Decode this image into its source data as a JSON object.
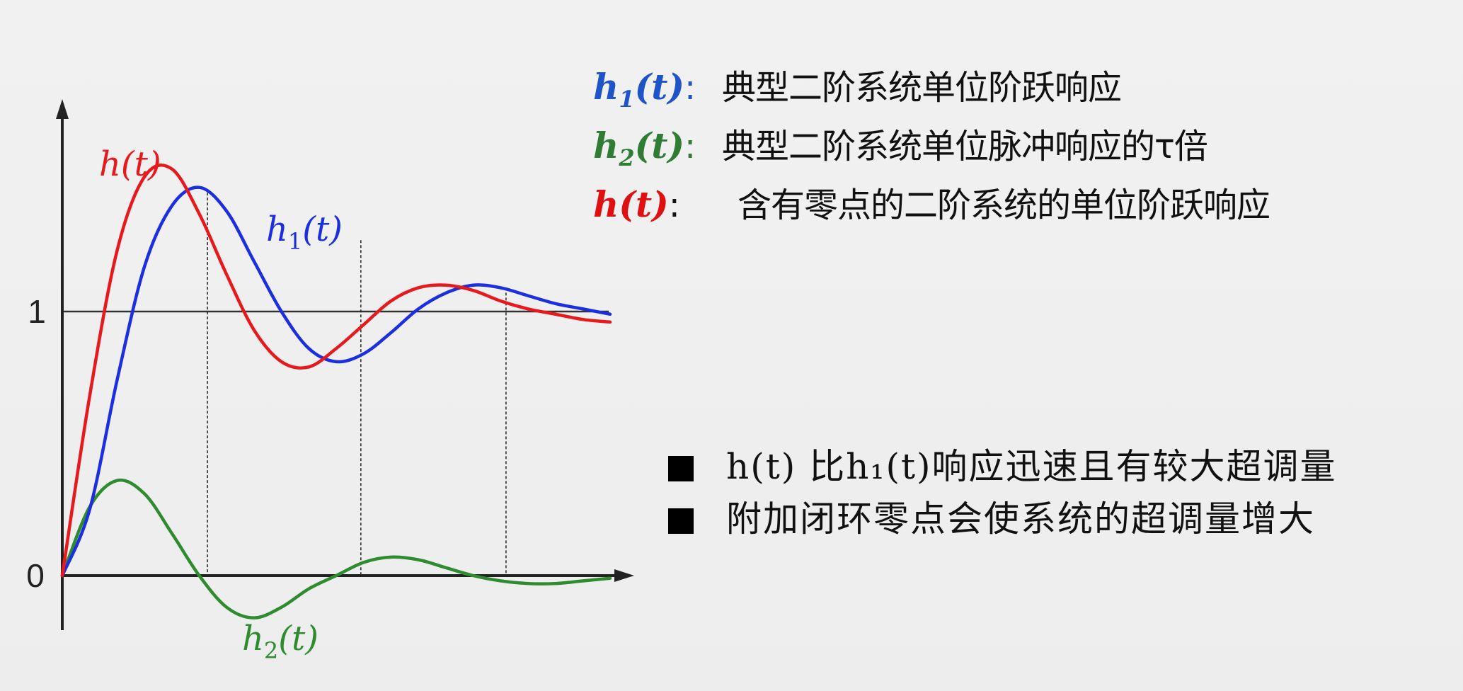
{
  "legend": [
    {
      "sym": "h",
      "sub": "1",
      "arg": "(t)",
      "sep": ":",
      "desc": "典型二阶系统单位阶跃响应",
      "color": "#1f54c8"
    },
    {
      "sym": "h",
      "sub": "2",
      "arg": "(t)",
      "sep": ":",
      "desc": "典型二阶系统单位脉冲响应的τ倍",
      "color": "#2e7d32"
    },
    {
      "sym": "h",
      "sub": "",
      "arg": "(t)",
      "sep": ":",
      "desc": "含有零点的二阶系统的单位阶跃响应",
      "color": "#e01010"
    }
  ],
  "notes": [
    {
      "text": "h(t) 比h₁(t)响应迅速且有较大超调量"
    },
    {
      "text": "附加闭环零点会使系统的超调量增大"
    }
  ],
  "chart_data": {
    "type": "line",
    "yticks": [
      "0",
      "1"
    ],
    "ylim": [
      -0.2,
      1.85
    ],
    "xlim": [
      0,
      10
    ],
    "reference_line": 1,
    "series": [
      {
        "name": "h(t)",
        "sub": "",
        "color": "#e8191c",
        "x": [
          0,
          0.5,
          1.0,
          1.5,
          2.0,
          2.5,
          3.0,
          3.5,
          4.0,
          4.5,
          5.0,
          5.5,
          6.0,
          6.5,
          7.0,
          7.5,
          8.0,
          8.5,
          9.0,
          9.5,
          10
        ],
        "y": [
          0,
          0.68,
          1.23,
          1.51,
          1.54,
          1.37,
          1.14,
          0.93,
          0.81,
          0.79,
          0.86,
          0.95,
          1.04,
          1.09,
          1.1,
          1.08,
          1.04,
          1.01,
          0.99,
          0.97,
          0.96
        ]
      },
      {
        "name": "h₁(t)",
        "sub": "1",
        "color": "#1c2fe0",
        "x": [
          0,
          0.5,
          1.0,
          1.5,
          2.0,
          2.5,
          3.0,
          3.5,
          4.0,
          4.5,
          5.0,
          5.5,
          6.0,
          6.5,
          7.0,
          7.5,
          8.0,
          8.5,
          9.0,
          9.5,
          10
        ],
        "y": [
          0,
          0.25,
          0.74,
          1.17,
          1.4,
          1.47,
          1.38,
          1.19,
          1.0,
          0.86,
          0.81,
          0.84,
          0.92,
          1.01,
          1.07,
          1.1,
          1.09,
          1.06,
          1.03,
          1.01,
          0.99
        ]
      },
      {
        "name": "h₂(t)",
        "sub": "2",
        "color": "#2e8b2e",
        "x": [
          0,
          0.5,
          1.0,
          1.5,
          2.0,
          2.5,
          3.0,
          3.5,
          4.0,
          4.5,
          5.0,
          5.5,
          6.0,
          6.5,
          7.0,
          7.5,
          8.0,
          8.5,
          9.0,
          9.5,
          10
        ],
        "y": [
          0,
          0.26,
          0.36,
          0.31,
          0.16,
          0.0,
          -0.12,
          -0.16,
          -0.12,
          -0.05,
          0.0,
          0.05,
          0.07,
          0.06,
          0.03,
          0.0,
          -0.02,
          -0.03,
          -0.03,
          -0.02,
          -0.01
        ]
      }
    ],
    "vertical_markers_x": [
      2.65,
      5.45,
      8.1
    ]
  }
}
